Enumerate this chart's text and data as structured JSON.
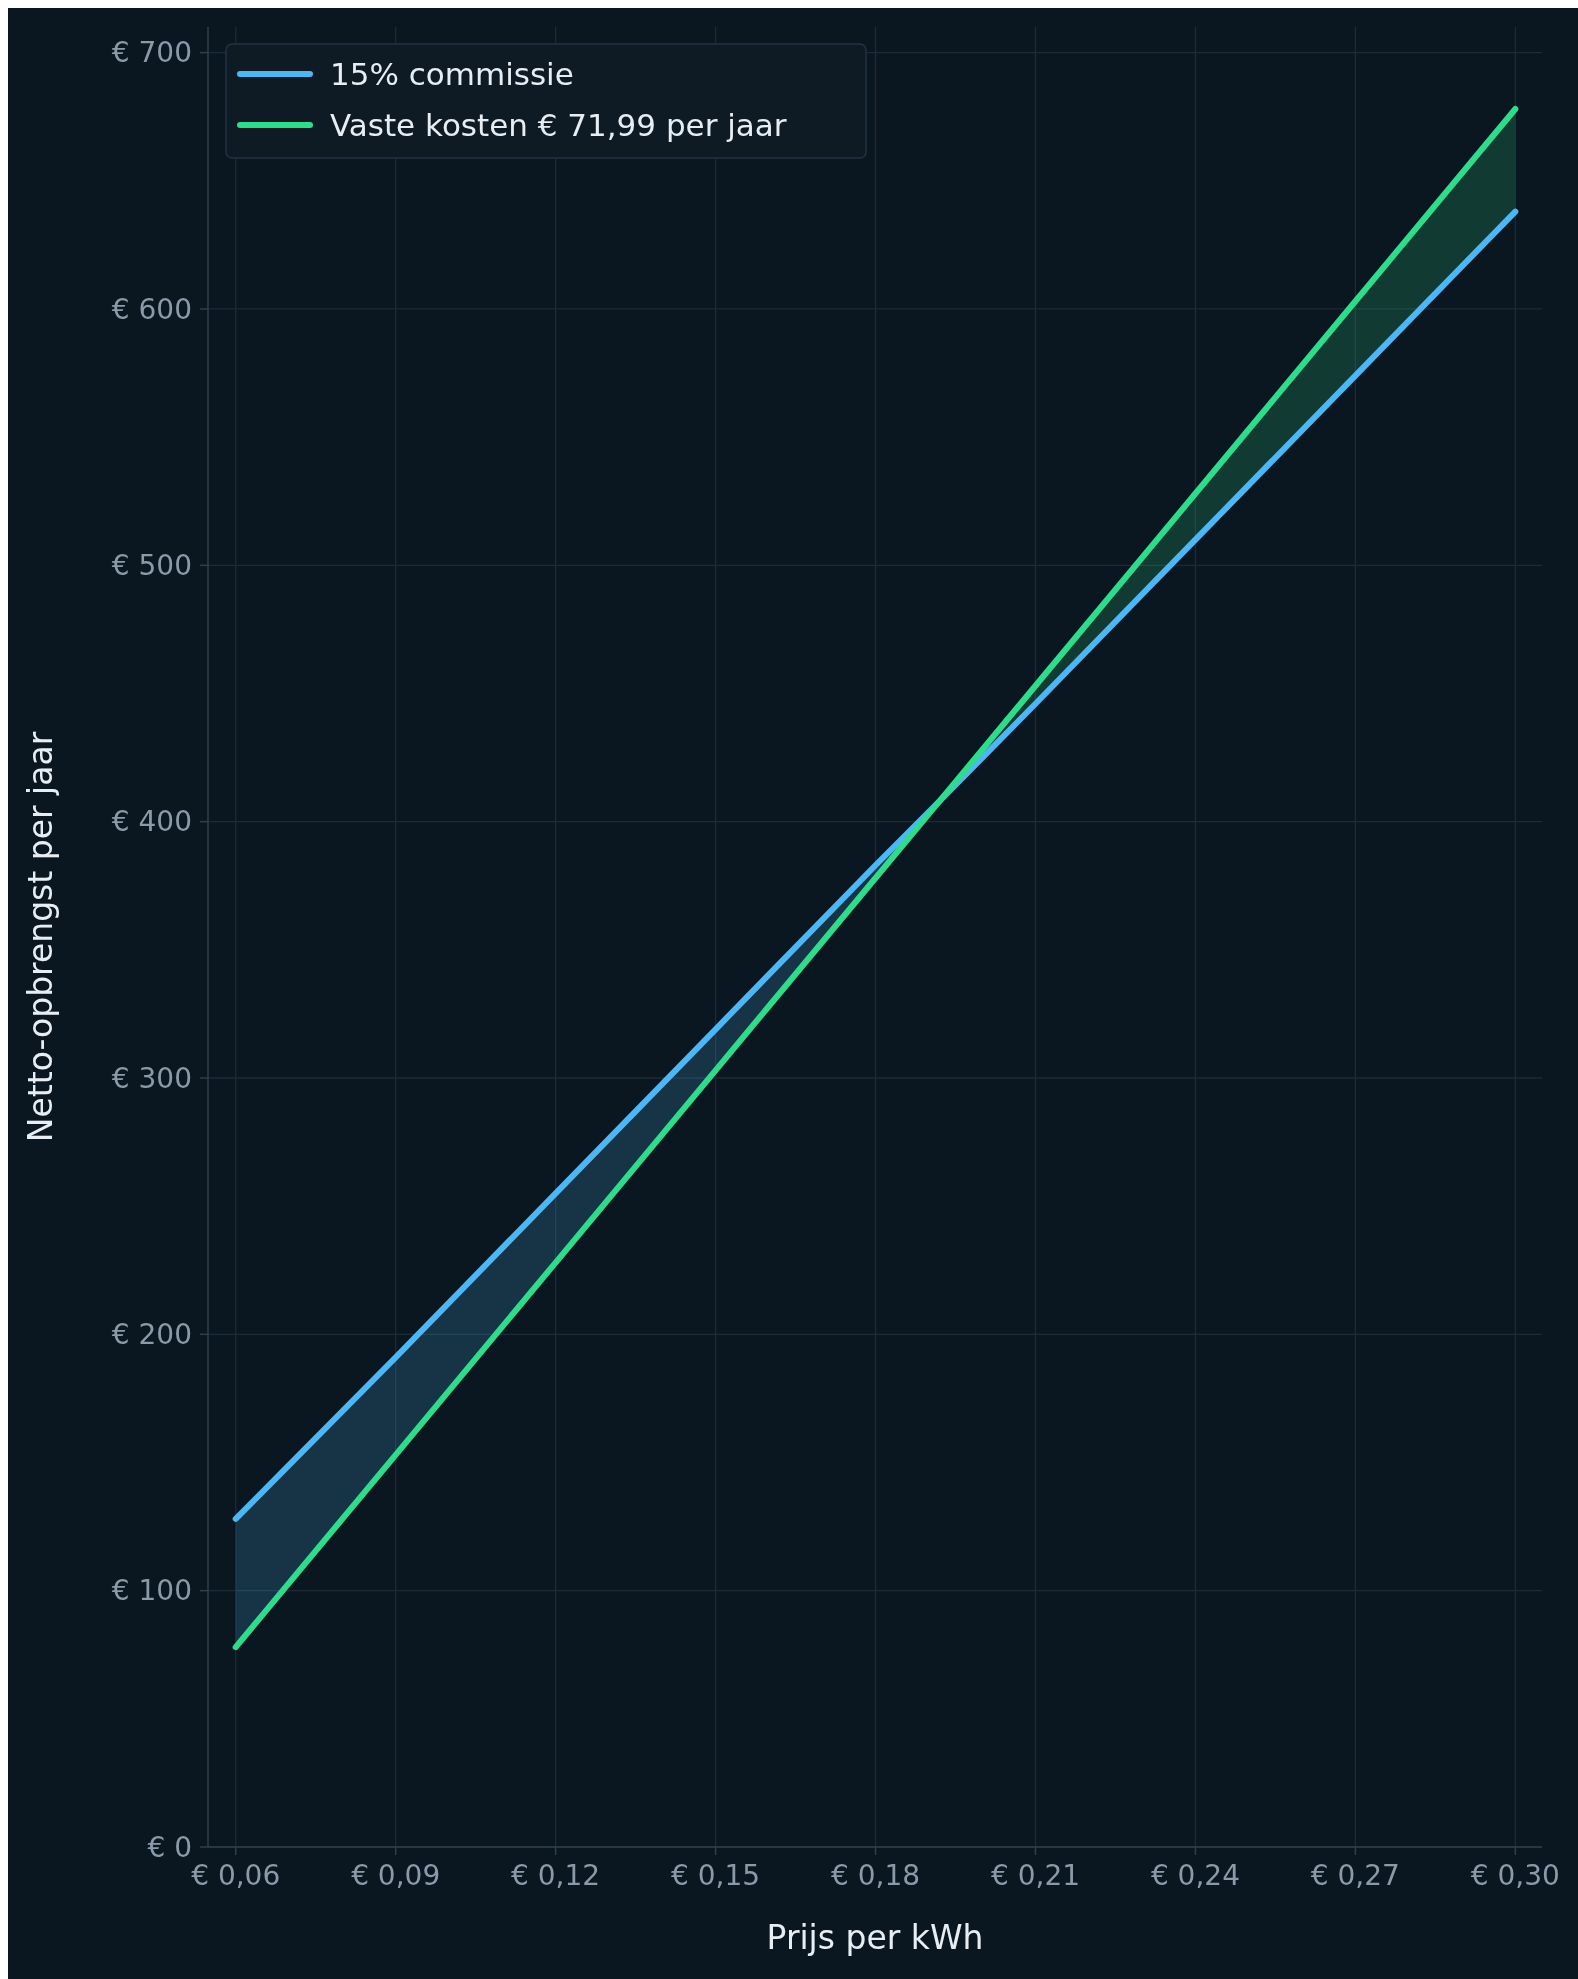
{
  "chart_data": {
    "type": "line",
    "xlabel": "Prijs per kWh",
    "ylabel": "Netto-opbrengst per jaar",
    "x": [
      0.06,
      0.09,
      0.12,
      0.15,
      0.18,
      0.192,
      0.21,
      0.24,
      0.27,
      0.3
    ],
    "series": [
      {
        "name": "15% commissie",
        "color": "#4db6f5",
        "values": [
          128,
          191,
          255,
          319,
          383,
          408,
          446,
          510,
          574,
          638
        ],
        "lower": [
          78,
          153,
          228,
          303,
          378,
          408,
          null,
          null,
          null,
          null
        ],
        "upper": [
          128,
          191,
          255,
          319,
          383,
          408,
          null,
          null,
          null,
          null
        ]
      },
      {
        "name": "Vaste kosten € 71,99 per jaar",
        "color": "#2edc8c",
        "values": [
          78,
          153,
          228,
          303,
          378,
          408,
          453,
          528,
          603,
          678
        ],
        "lower": [
          null,
          null,
          null,
          null,
          null,
          408,
          446,
          510,
          574,
          638
        ],
        "upper": [
          null,
          null,
          null,
          null,
          null,
          408,
          453,
          528,
          603,
          678
        ]
      }
    ],
    "xlim": [
      0.0548,
      0.305
    ],
    "ylim": [
      0,
      710
    ],
    "xticks": [
      {
        "value": 0.06,
        "label": "€ 0,06"
      },
      {
        "value": 0.09,
        "label": "€ 0,09"
      },
      {
        "value": 0.12,
        "label": "€ 0,12"
      },
      {
        "value": 0.15,
        "label": "€ 0,15"
      },
      {
        "value": 0.18,
        "label": "€ 0,18"
      },
      {
        "value": 0.21,
        "label": "€ 0,21"
      },
      {
        "value": 0.24,
        "label": "€ 0,24"
      },
      {
        "value": 0.27,
        "label": "€ 0,27"
      },
      {
        "value": 0.3,
        "label": "€ 0,30"
      }
    ],
    "yticks": [
      {
        "value": 0,
        "label": "€ 0"
      },
      {
        "value": 100,
        "label": "€ 100"
      },
      {
        "value": 200,
        "label": "€ 200"
      },
      {
        "value": 300,
        "label": "€ 300"
      },
      {
        "value": 400,
        "label": "€ 400"
      },
      {
        "value": 500,
        "label": "€ 500"
      },
      {
        "value": 600,
        "label": "€ 600"
      },
      {
        "value": 700,
        "label": "€ 700"
      }
    ],
    "grid": true,
    "legend": "top left",
    "line_style": "solid",
    "marker": "none"
  }
}
